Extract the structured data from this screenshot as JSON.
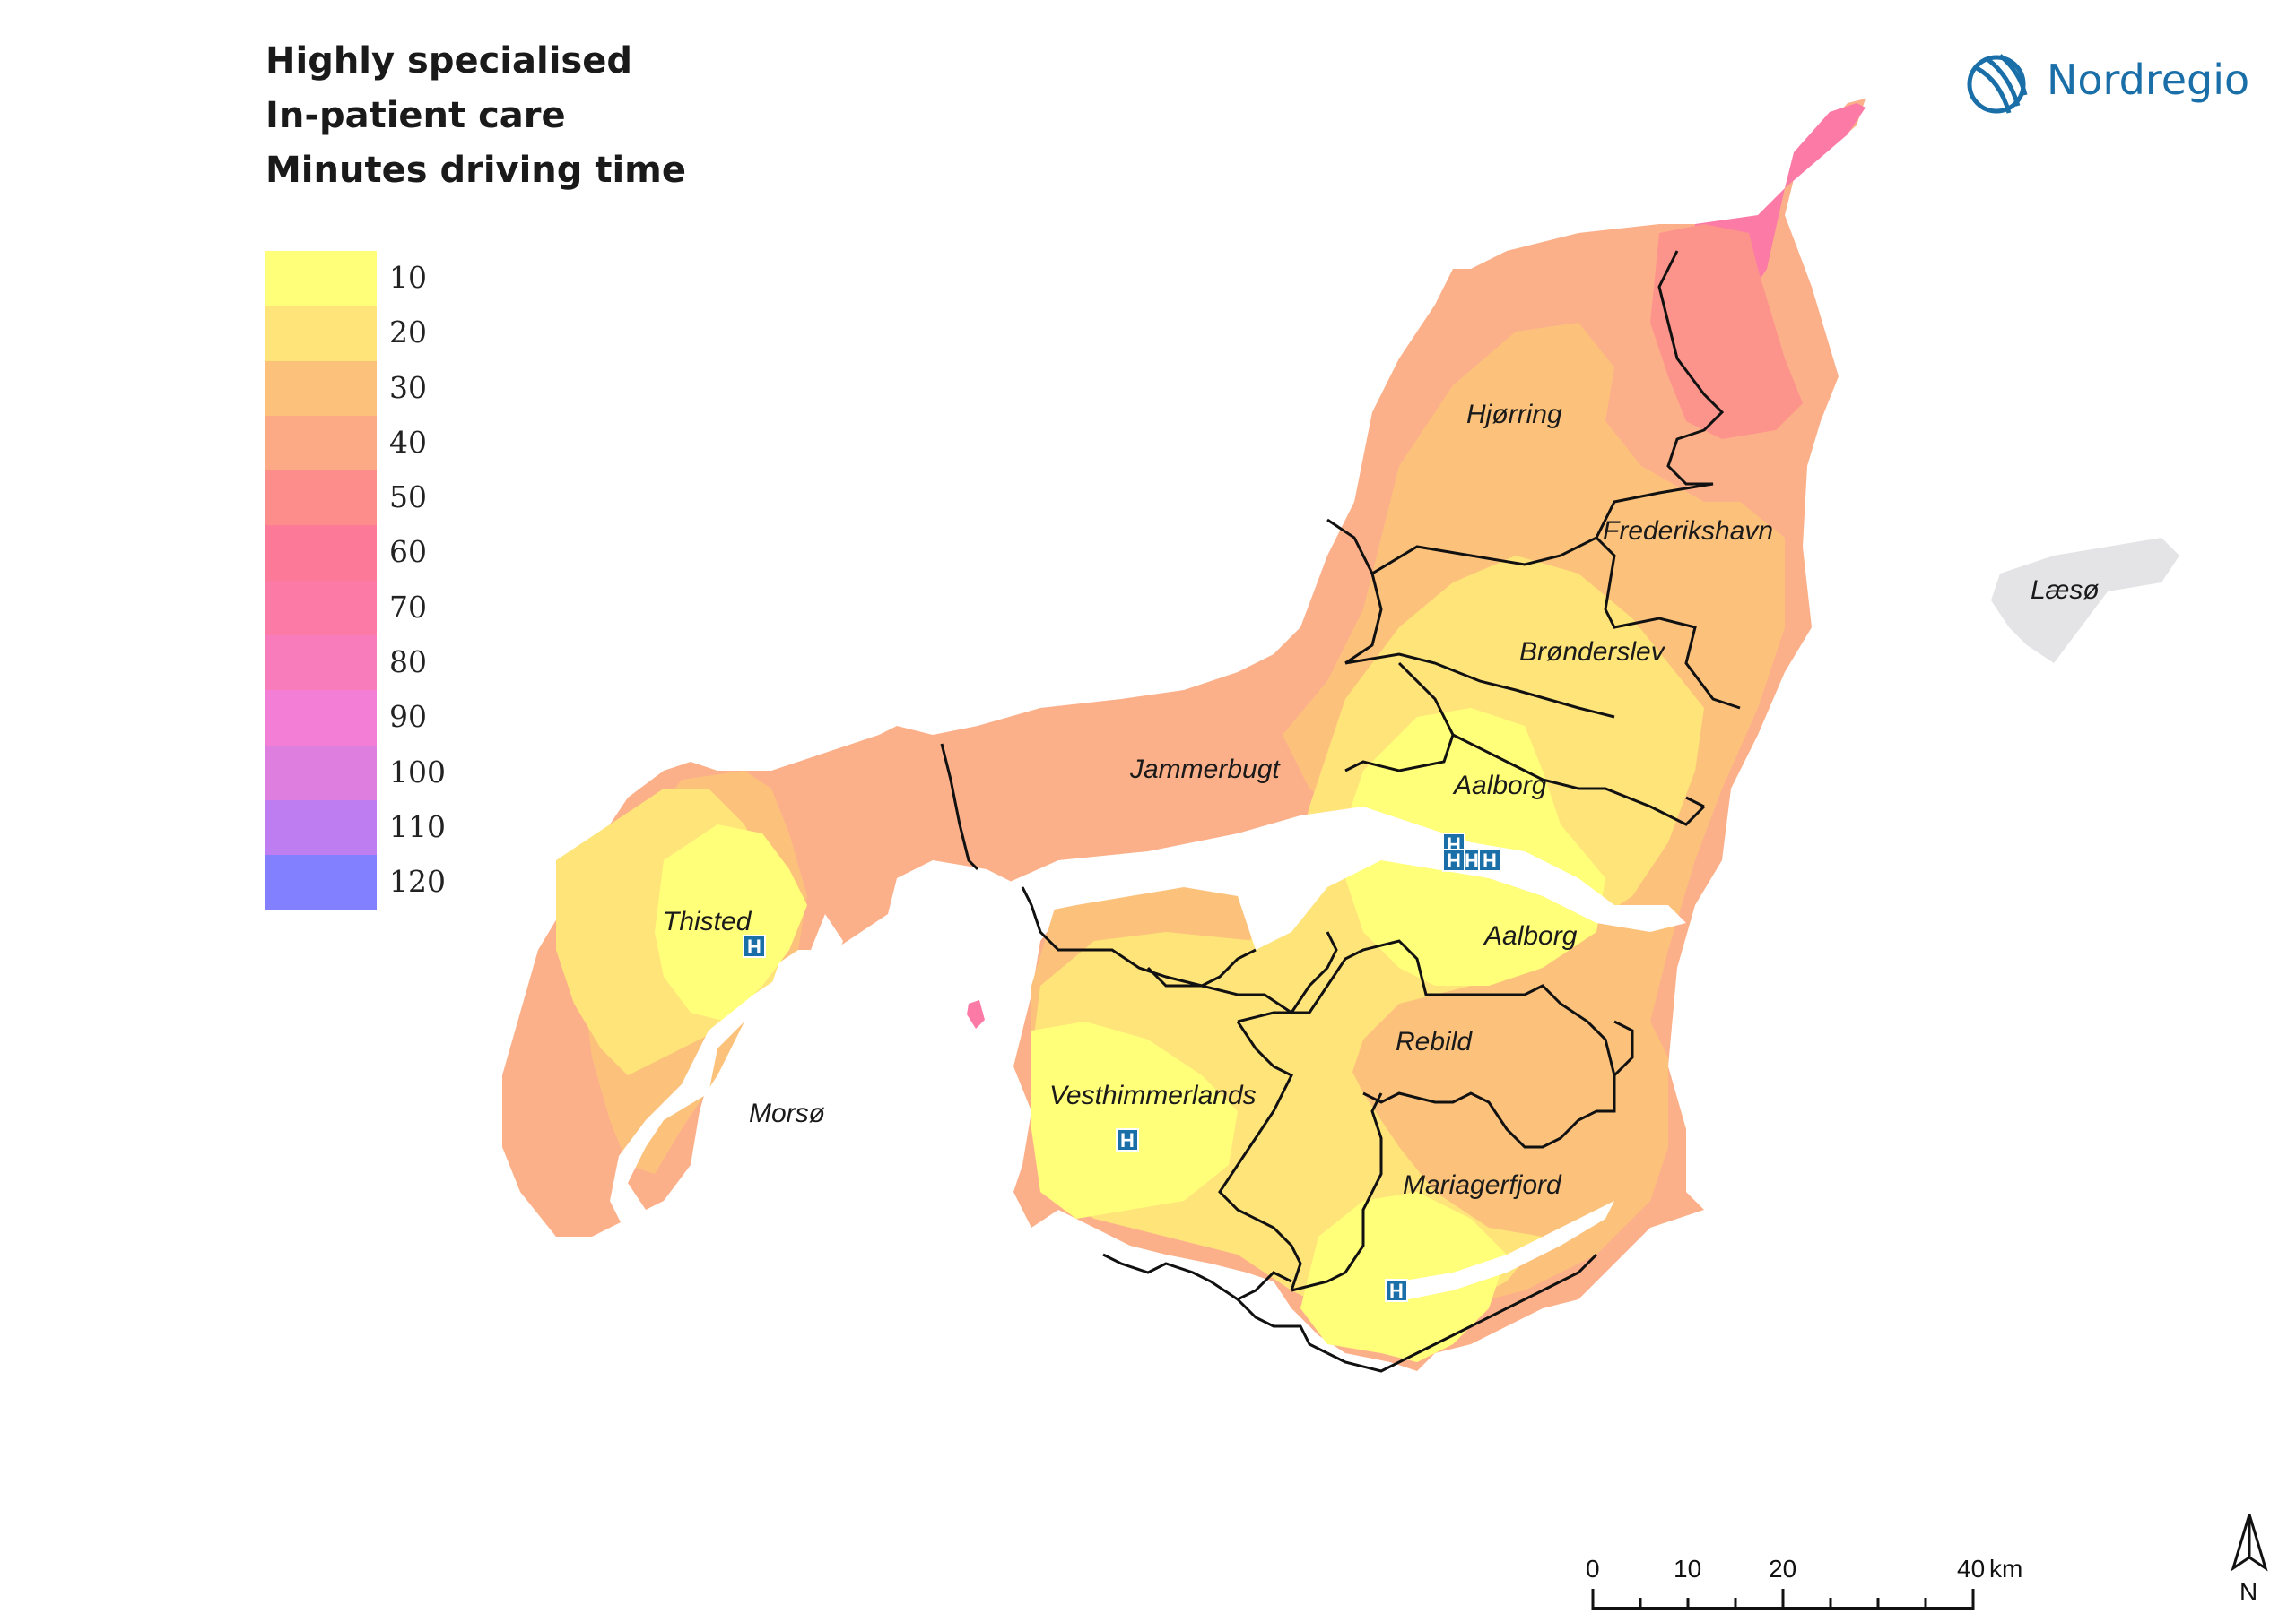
{
  "title": {
    "line1": "Highly specialised",
    "line2": "In-patient care",
    "line3": "Minutes driving time"
  },
  "legend": [
    {
      "label": "10",
      "color": "#ffff7a"
    },
    {
      "label": "20",
      "color": "#ffe47a"
    },
    {
      "label": "30",
      "color": "#fcc27c"
    },
    {
      "label": "40",
      "color": "#fca985"
    },
    {
      "label": "50",
      "color": "#fc8d8a"
    },
    {
      "label": "60",
      "color": "#fc7a98"
    },
    {
      "label": "70",
      "color": "#fc7aa6"
    },
    {
      "label": "80",
      "color": "#f87cbc"
    },
    {
      "label": "90",
      "color": "#f27ed6"
    },
    {
      "label": "100",
      "color": "#de7fe0"
    },
    {
      "label": "110",
      "color": "#be7ef2"
    },
    {
      "label": "120",
      "color": "#8280ff"
    }
  ],
  "logo": {
    "text": "Nordregio",
    "color": "#1a6fa8",
    "icon": "nordregio-logo-icon"
  },
  "places": {
    "hjorring": "Hjørring",
    "frederikshavn": "Frederikshavn",
    "laeso": "Læsø",
    "bronderslev": "Brønderslev",
    "jammerbugt": "Jammerbugt",
    "aalborg_north": "Aalborg",
    "aalborg_south": "Aalborg",
    "thisted": "Thisted",
    "morso": "Morsø",
    "rebild": "Rebild",
    "vesthimmerlands": "Vesthimmerlands",
    "mariagerfjord": "Mariagerfjord"
  },
  "hospital_icon": {
    "glyph": "H",
    "icon": "hospital-icon",
    "color": "#1a6fa8"
  },
  "scale_bar": {
    "ticks": [
      "0",
      "10",
      "20",
      "40"
    ],
    "unit": "km"
  },
  "north_arrow": {
    "label": "N",
    "icon": "north-arrow-icon"
  }
}
